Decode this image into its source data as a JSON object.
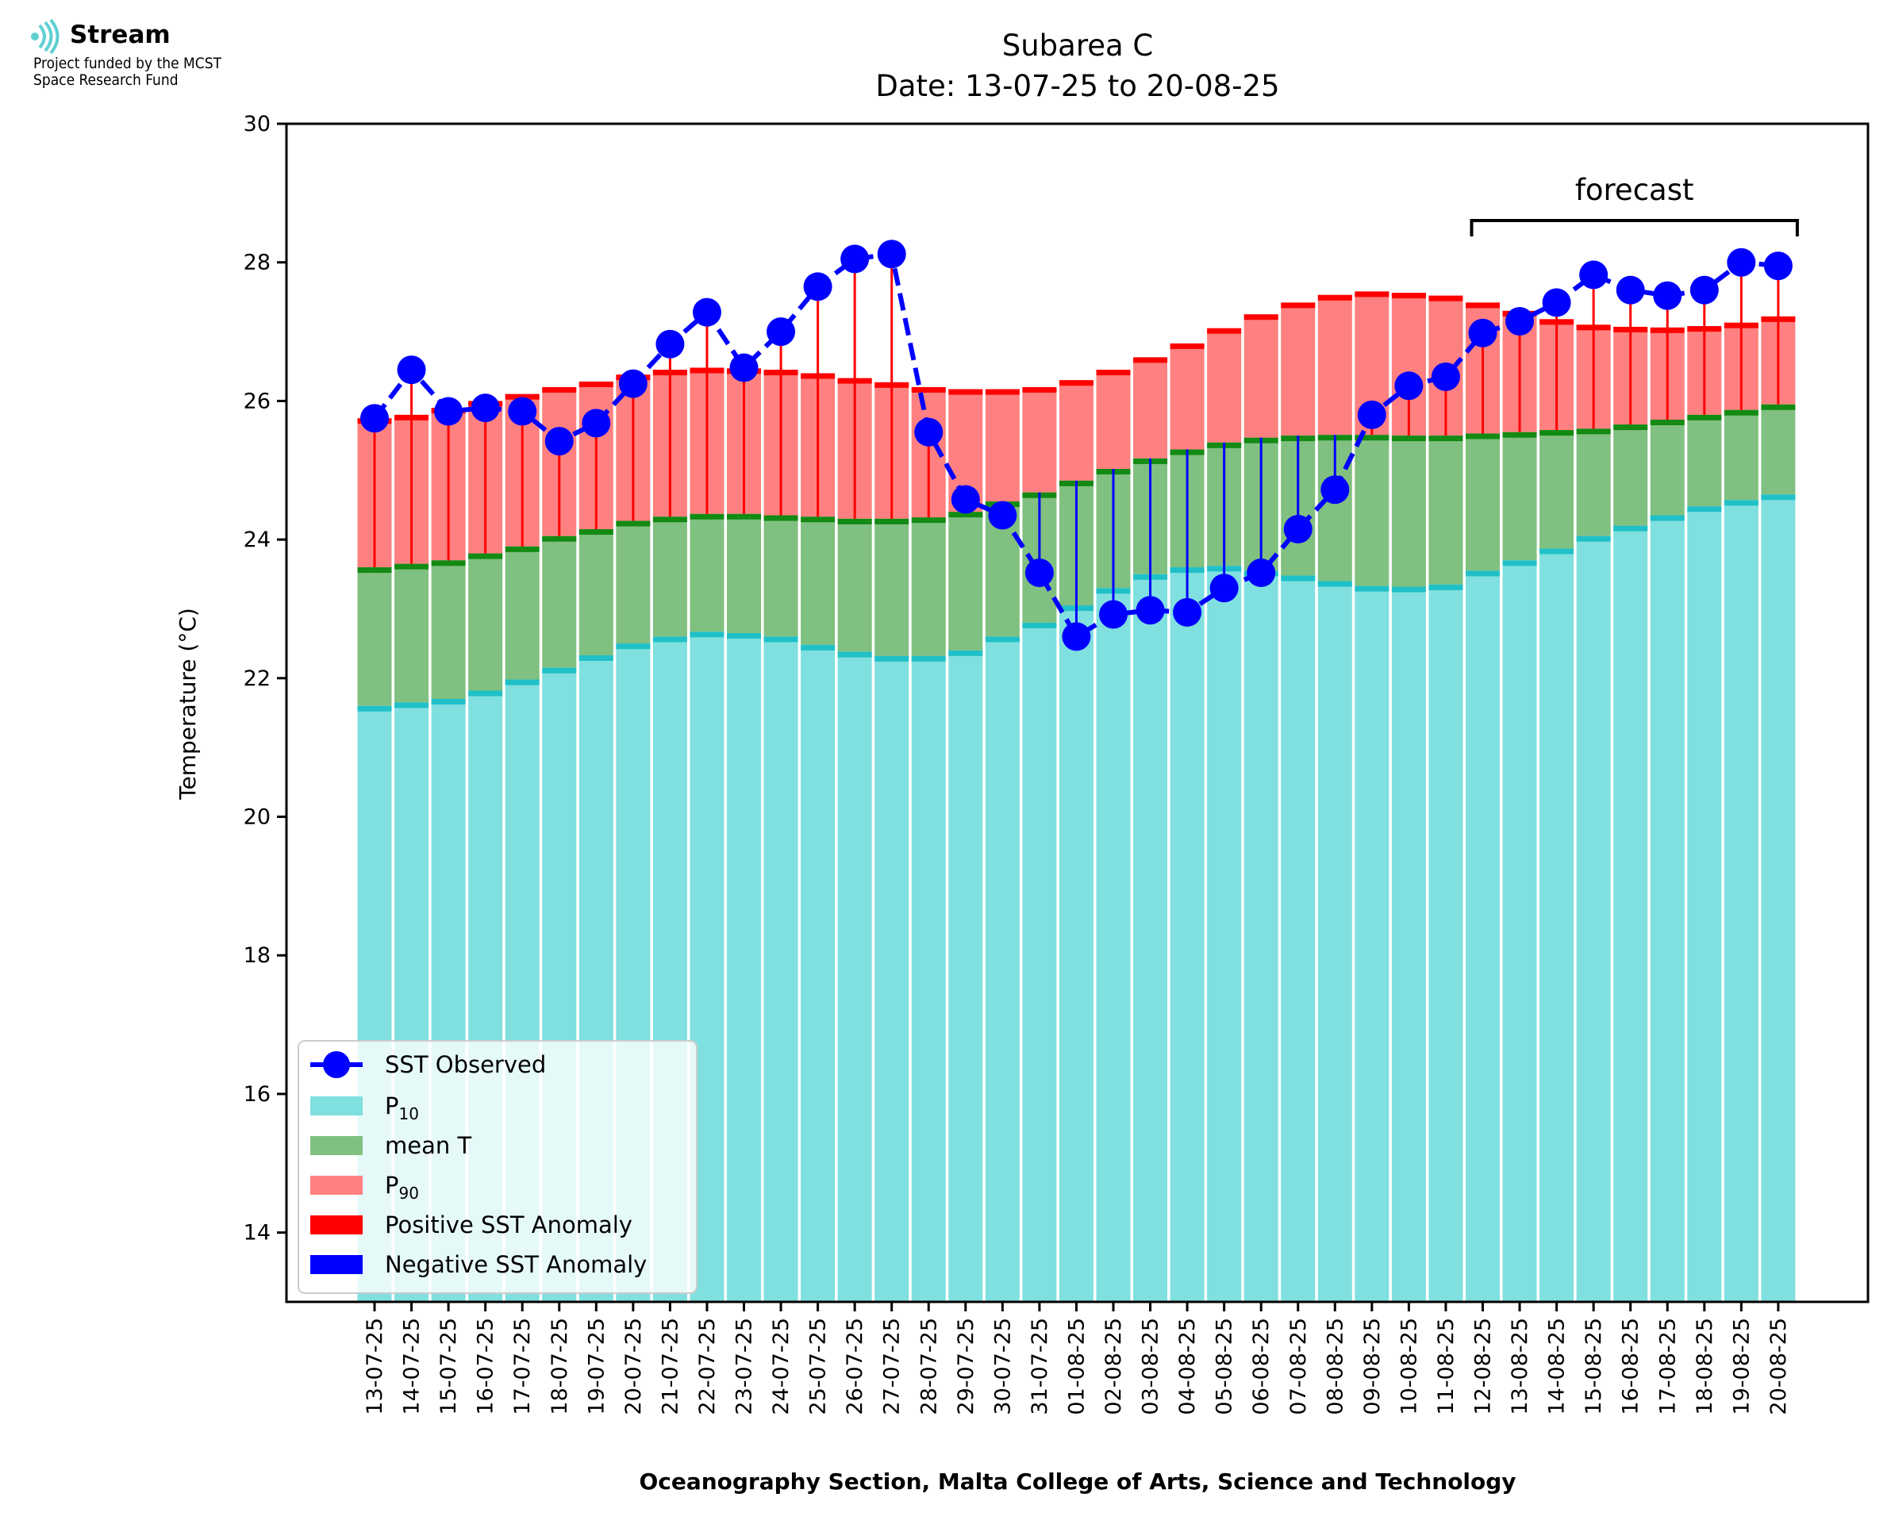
{
  "logo": {
    "name": "Stream",
    "subtitle_line1": "Project funded by the MCST",
    "subtitle_line2": "Space Research Fund"
  },
  "colors": {
    "p10": "#80dfdf",
    "p10_edge": "#20c0c8",
    "mean": "#80c080",
    "mean_edge": "#138a13",
    "p90": "#ff8080",
    "p90_edge": "#ff0000",
    "observed": "#0000ff",
    "pos_anomaly": "#ff0000",
    "neg_anomaly": "#0000ff"
  },
  "chart_data": {
    "type": "bar",
    "title_line1": "Subarea C",
    "title_line2": "Date: 13-07-25 to 20-08-25",
    "xlabel": "Oceanography Section, Malta College of Arts, Science and Technology",
    "ylabel": "Temperature (°C)",
    "ylim": [
      13,
      30
    ],
    "yticks": [
      14,
      16,
      18,
      20,
      22,
      24,
      26,
      28,
      30
    ],
    "grid": false,
    "legend_position": "lower-left",
    "categories": [
      "13-07-25",
      "14-07-25",
      "15-07-25",
      "16-07-25",
      "17-07-25",
      "18-07-25",
      "19-07-25",
      "20-07-25",
      "21-07-25",
      "22-07-25",
      "23-07-25",
      "24-07-25",
      "25-07-25",
      "26-07-25",
      "27-07-25",
      "28-07-25",
      "29-07-25",
      "30-07-25",
      "31-07-25",
      "01-08-25",
      "02-08-25",
      "03-08-25",
      "04-08-25",
      "05-08-25",
      "06-08-25",
      "07-08-25",
      "08-08-25",
      "09-08-25",
      "10-08-25",
      "11-08-25",
      "12-08-25",
      "13-08-25",
      "14-08-25",
      "15-08-25",
      "16-08-25",
      "17-08-25",
      "18-08-25",
      "19-08-25",
      "20-08-25"
    ],
    "series": [
      {
        "name": "P10",
        "values": [
          21.6,
          21.65,
          21.7,
          21.82,
          21.98,
          22.15,
          22.33,
          22.5,
          22.6,
          22.67,
          22.65,
          22.6,
          22.48,
          22.38,
          22.32,
          22.32,
          22.4,
          22.6,
          22.8,
          23.05,
          23.3,
          23.5,
          23.6,
          23.62,
          23.55,
          23.48,
          23.4,
          23.33,
          23.32,
          23.35,
          23.55,
          23.7,
          23.87,
          24.05,
          24.2,
          24.35,
          24.48,
          24.57,
          24.65
        ]
      },
      {
        "name": "mean T",
        "values": [
          23.6,
          23.65,
          23.7,
          23.8,
          23.9,
          24.05,
          24.15,
          24.27,
          24.33,
          24.37,
          24.37,
          24.35,
          24.33,
          24.3,
          24.3,
          24.32,
          24.4,
          24.55,
          24.68,
          24.85,
          25.02,
          25.17,
          25.3,
          25.4,
          25.47,
          25.5,
          25.51,
          25.51,
          25.5,
          25.5,
          25.53,
          25.55,
          25.58,
          25.6,
          25.66,
          25.73,
          25.8,
          25.87,
          25.95
        ]
      },
      {
        "name": "P90",
        "values": [
          25.75,
          25.8,
          25.9,
          26.0,
          26.1,
          26.2,
          26.28,
          26.38,
          26.45,
          26.48,
          26.47,
          26.45,
          26.4,
          26.33,
          26.27,
          26.2,
          26.17,
          26.17,
          26.2,
          26.3,
          26.45,
          26.63,
          26.83,
          27.05,
          27.25,
          27.42,
          27.53,
          27.58,
          27.56,
          27.52,
          27.42,
          27.3,
          27.18,
          27.1,
          27.07,
          27.06,
          27.08,
          27.13,
          27.22
        ]
      },
      {
        "name": "SST Observed",
        "values": [
          25.75,
          26.45,
          25.85,
          25.9,
          25.85,
          25.42,
          25.68,
          26.25,
          26.82,
          27.28,
          26.48,
          27.0,
          27.65,
          28.05,
          28.12,
          25.55,
          24.58,
          24.35,
          23.52,
          22.6,
          22.92,
          22.98,
          22.95,
          23.3,
          23.52,
          24.15,
          24.72,
          25.8,
          26.22,
          26.35,
          26.98,
          27.15,
          27.42,
          27.82,
          27.6,
          27.52,
          27.6,
          28.0,
          27.95
        ]
      }
    ],
    "legend": {
      "observed": "SST Observed",
      "p10_main": "P",
      "p10_sub": "10",
      "mean": "mean T",
      "p90_main": "P",
      "p90_sub": "90",
      "positive": "Positive SST Anomaly",
      "negative": "Negative SST Anomaly"
    },
    "annotation": {
      "text": "forecast",
      "from": "12-08-25",
      "to": "20-08-25"
    }
  }
}
